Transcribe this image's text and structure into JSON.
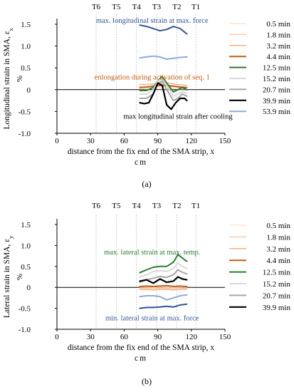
{
  "chart_data": [
    {
      "type": "line",
      "panel_label": "(a)",
      "xlabel_lines": [
        "distance from the fix end of the SMA strip, x",
        "cm"
      ],
      "ylabel": "Longitudinal strain in SMA, ε",
      "ylabel_sub": "x",
      "yunit": "%",
      "xlim": [
        0,
        150
      ],
      "ylim": [
        -1.0,
        1.5
      ],
      "xticks": [
        0,
        30,
        60,
        90,
        120,
        150
      ],
      "yticks": [
        -1.0,
        -0.5,
        0,
        0.5,
        1.0,
        1.5
      ],
      "xtick_labels": [
        "0",
        "30",
        "60",
        "90",
        "120",
        "150"
      ],
      "ytick_labels": [
        "-1.0",
        "-0.5",
        "0",
        "0.5",
        "1.0",
        "1.5"
      ],
      "grid": false,
      "legend_position": "right",
      "sensors": [
        {
          "label": "T6",
          "x": 35
        },
        {
          "label": "T5",
          "x": 53
        },
        {
          "label": "T4",
          "x": 71
        },
        {
          "label": "T3",
          "x": 89
        },
        {
          "label": "T2",
          "x": 107
        },
        {
          "label": "T1",
          "x": 124
        }
      ],
      "annotations": [
        {
          "text": "max. longitudinal strain at max. force",
          "x": 85,
          "y": 1.6,
          "color": "#2f5597"
        },
        {
          "text": "enlongation during activation of seq. 1",
          "x": 85,
          "y": 0.3,
          "color": "#c55a11"
        },
        {
          "text": "max longitudinal strain after cooling",
          "x": 108,
          "y": -0.6,
          "color": "#000000"
        }
      ],
      "series": [
        {
          "name": "0.5 min",
          "color": "#fbe5d6",
          "width": 1.5,
          "x": [
            74,
            80,
            86,
            92,
            98,
            104,
            110,
            116
          ],
          "y": [
            0.02,
            0.02,
            0.03,
            0.02,
            0.02,
            0.03,
            0.02,
            0.02
          ]
        },
        {
          "name": "1.8 min",
          "color": "#f8cbad",
          "width": 1.5,
          "x": [
            74,
            80,
            86,
            92,
            98,
            104,
            110,
            116
          ],
          "y": [
            0.06,
            0.06,
            0.07,
            0.08,
            0.08,
            0.07,
            0.06,
            0.05
          ]
        },
        {
          "name": "3.2 min",
          "color": "#f4b183",
          "width": 1.5,
          "x": [
            74,
            80,
            86,
            92,
            98,
            104,
            110,
            116
          ],
          "y": [
            0.12,
            0.12,
            0.13,
            0.15,
            0.16,
            0.13,
            0.11,
            0.1
          ]
        },
        {
          "name": "4.4 min",
          "color": "#c55a11",
          "width": 2,
          "x": [
            74,
            80,
            86,
            92,
            98,
            104,
            110,
            116
          ],
          "y": [
            0.05,
            0.06,
            0.08,
            0.1,
            0.1,
            0.08,
            0.06,
            0.05
          ]
        },
        {
          "name": "12.5 min",
          "color": "#2e7d32",
          "width": 2,
          "x": [
            74,
            80,
            86,
            90,
            94,
            98,
            104,
            108,
            112,
            116
          ],
          "y": [
            -0.02,
            -0.02,
            0.05,
            0.2,
            0.3,
            0.15,
            -0.05,
            0.0,
            0.05,
            0.0
          ]
        },
        {
          "name": "15.2 min",
          "color": "#d9d9d9",
          "width": 2,
          "x": [
            74,
            80,
            86,
            90,
            94,
            98,
            104,
            108,
            112,
            116
          ],
          "y": [
            -0.1,
            -0.1,
            0.0,
            0.2,
            0.25,
            0.1,
            -0.15,
            -0.1,
            -0.05,
            -0.08
          ]
        },
        {
          "name": "20.7 min",
          "color": "#a6a6a6",
          "width": 2,
          "x": [
            74,
            80,
            86,
            90,
            94,
            98,
            104,
            108,
            112,
            116
          ],
          "y": [
            -0.2,
            -0.2,
            -0.1,
            0.15,
            0.2,
            0.0,
            -0.25,
            -0.2,
            -0.1,
            -0.15
          ]
        },
        {
          "name": "39.9 min",
          "color": "#000000",
          "width": 2.2,
          "x": [
            74,
            78,
            82,
            86,
            90,
            94,
            98,
            102,
            106,
            110,
            114,
            116
          ],
          "y": [
            -0.3,
            -0.32,
            -0.3,
            -0.1,
            0.15,
            0.1,
            -0.35,
            -0.45,
            -0.3,
            -0.2,
            -0.2,
            -0.25
          ]
        },
        {
          "name": "53.9 min",
          "color": "#8faadc",
          "width": 2,
          "x": [
            74,
            80,
            86,
            92,
            98,
            104,
            110,
            116
          ],
          "y": [
            0.73,
            0.75,
            0.77,
            0.75,
            0.7,
            0.72,
            0.74,
            0.75
          ]
        },
        {
          "name": "",
          "color": "#2f5597",
          "width": 2,
          "x": [
            74,
            80,
            86,
            92,
            98,
            104,
            110,
            116
          ],
          "y": [
            1.48,
            1.45,
            1.4,
            1.35,
            1.38,
            1.45,
            1.4,
            1.28
          ]
        }
      ]
    },
    {
      "type": "line",
      "panel_label": "(b)",
      "xlabel_lines": [
        "distance from the fix end of the SMA strip, x",
        "cm"
      ],
      "ylabel": "Lateral strain in SMA, ε",
      "ylabel_sub": "y",
      "yunit": "%",
      "xlim": [
        0,
        150
      ],
      "ylim": [
        -1.0,
        1.5
      ],
      "xticks": [
        0,
        30,
        60,
        90,
        120,
        150
      ],
      "yticks": [
        -1.0,
        -0.5,
        0,
        0.5,
        1.0,
        1.5
      ],
      "xtick_labels": [
        "0",
        "30",
        "60",
        "90",
        "120",
        "150"
      ],
      "ytick_labels": [
        "-1.0",
        "-0.5",
        "0",
        "0.5",
        "1.0",
        "1.5"
      ],
      "grid": false,
      "legend_position": "right",
      "sensors": [
        {
          "label": "T6",
          "x": 35
        },
        {
          "label": "T5",
          "x": 53
        },
        {
          "label": "T4",
          "x": 71
        },
        {
          "label": "T3",
          "x": 89
        },
        {
          "label": "T2",
          "x": 107
        },
        {
          "label": "T1",
          "x": 124
        }
      ],
      "annotations": [
        {
          "text": "max. lateral strain at max. temp.",
          "x": 85,
          "y": 0.85,
          "color": "#2e7d32"
        },
        {
          "text": "min. lateral strain at max. force",
          "x": 85,
          "y": -0.72,
          "color": "#2f5597"
        }
      ],
      "series": [
        {
          "name": "0.5 min",
          "color": "#fbe5d6",
          "width": 1.5,
          "x": [
            74,
            80,
            86,
            92,
            98,
            104,
            110,
            116
          ],
          "y": [
            0.01,
            0.01,
            0.0,
            0.01,
            0.01,
            0.0,
            0.01,
            0.01
          ]
        },
        {
          "name": "1.8 min",
          "color": "#f8cbad",
          "width": 1.5,
          "x": [
            74,
            80,
            86,
            92,
            98,
            104,
            110,
            116
          ],
          "y": [
            -0.02,
            -0.02,
            -0.03,
            -0.02,
            -0.02,
            -0.03,
            -0.02,
            -0.02
          ]
        },
        {
          "name": "3.2 min",
          "color": "#f4b183",
          "width": 1.5,
          "x": [
            74,
            80,
            86,
            92,
            98,
            104,
            110,
            116
          ],
          "y": [
            -0.05,
            -0.05,
            -0.06,
            -0.05,
            -0.05,
            -0.06,
            -0.05,
            -0.04
          ]
        },
        {
          "name": "4.4 min",
          "color": "#c55a11",
          "width": 2,
          "x": [
            74,
            80,
            86,
            92,
            98,
            104,
            110,
            116
          ],
          "y": [
            0.02,
            0.03,
            0.02,
            0.03,
            0.04,
            0.02,
            0.03,
            0.02
          ]
        },
        {
          "name": "12.5 min",
          "color": "#2e7d32",
          "width": 2,
          "x": [
            74,
            80,
            86,
            92,
            98,
            104,
            108,
            112,
            116
          ],
          "y": [
            0.35,
            0.42,
            0.48,
            0.5,
            0.5,
            0.6,
            0.78,
            0.7,
            0.62
          ]
        },
        {
          "name": "15.2 min",
          "color": "#d9d9d9",
          "width": 2,
          "x": [
            74,
            80,
            86,
            92,
            98,
            104,
            108,
            112,
            116
          ],
          "y": [
            0.25,
            0.3,
            0.38,
            0.4,
            0.38,
            0.45,
            0.58,
            0.5,
            0.45
          ]
        },
        {
          "name": "20.7 min",
          "color": "#a6a6a6",
          "width": 2,
          "x": [
            74,
            80,
            86,
            92,
            98,
            104,
            108,
            112,
            116
          ],
          "y": [
            0.12,
            0.18,
            0.22,
            0.26,
            0.24,
            0.3,
            0.42,
            0.36,
            0.32
          ]
        },
        {
          "name": "39.9 min",
          "color": "#000000",
          "width": 2.2,
          "x": [
            74,
            80,
            86,
            92,
            98,
            104,
            108,
            112,
            116
          ],
          "y": [
            0.15,
            0.18,
            0.1,
            0.2,
            0.12,
            0.15,
            0.25,
            0.2,
            0.18
          ]
        },
        {
          "name": "",
          "color": "#8faadc",
          "width": 2,
          "x": [
            74,
            80,
            86,
            92,
            98,
            104,
            110,
            116
          ],
          "y": [
            -0.22,
            -0.2,
            -0.2,
            -0.22,
            -0.3,
            -0.25,
            -0.2,
            -0.18
          ]
        },
        {
          "name": "",
          "color": "#2f5597",
          "width": 2,
          "x": [
            74,
            80,
            86,
            92,
            98,
            104,
            110,
            116
          ],
          "y": [
            -0.5,
            -0.48,
            -0.48,
            -0.47,
            -0.45,
            -0.47,
            -0.42,
            -0.4
          ]
        }
      ]
    }
  ]
}
